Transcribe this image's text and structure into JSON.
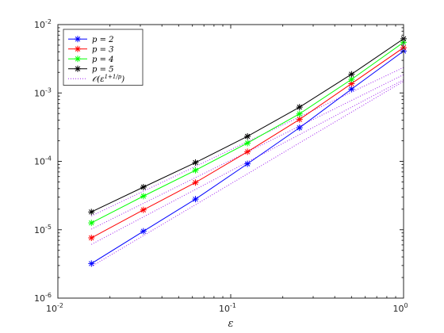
{
  "chart_data": {
    "type": "line",
    "title": "",
    "xlabel": "ε",
    "ylabel": "",
    "xscale": "log",
    "yscale": "log",
    "xlim": [
      0.01,
      1
    ],
    "ylim": [
      1e-06,
      0.01
    ],
    "x_ticks": [
      {
        "value": 0.01,
        "base": "10",
        "exp": "-2"
      },
      {
        "value": 0.1,
        "base": "10",
        "exp": "-1"
      },
      {
        "value": 1,
        "base": "10",
        "exp": "0"
      }
    ],
    "y_ticks": [
      {
        "value": 1e-06,
        "base": "10",
        "exp": "-6"
      },
      {
        "value": 1e-05,
        "base": "10",
        "exp": "-5"
      },
      {
        "value": 0.0001,
        "base": "10",
        "exp": "-4"
      },
      {
        "value": 0.001,
        "base": "10",
        "exp": "-3"
      },
      {
        "value": 0.01,
        "base": "10",
        "exp": "-2"
      }
    ],
    "grid": false,
    "legend_position": "top-left",
    "x": [
      0.015625,
      0.03125,
      0.0625,
      0.125,
      0.25,
      0.5,
      1
    ],
    "series": [
      {
        "name": "p = 2",
        "color": "#0000ff",
        "marker": "asterisk",
        "style": "solid",
        "values": [
          3.2e-06,
          9.5e-06,
          2.8e-05,
          9.2e-05,
          0.00031,
          0.00114,
          0.0041
        ]
      },
      {
        "name": "p = 3",
        "color": "#ff0000",
        "marker": "asterisk",
        "style": "solid",
        "values": [
          7.6e-06,
          1.95e-05,
          4.9e-05,
          0.000138,
          0.00041,
          0.00137,
          0.0046
        ]
      },
      {
        "name": "p = 4",
        "color": "#00ff00",
        "marker": "asterisk",
        "style": "solid",
        "values": [
          1.26e-05,
          3.1e-05,
          7.4e-05,
          0.000185,
          0.000495,
          0.00158,
          0.0055
        ]
      },
      {
        "name": "p = 5",
        "color": "#000000",
        "marker": "asterisk",
        "style": "solid",
        "values": [
          1.82e-05,
          4.2e-05,
          9.6e-05,
          0.000232,
          0.00062,
          0.00188,
          0.0062
        ]
      }
    ],
    "reference_lines": {
      "name": "O(ε^(1+1/p))",
      "legend_main": "𝒪(ε",
      "legend_sup": "1+1/p",
      "legend_close": ")",
      "color": "#a020f0",
      "style": "dotted",
      "lines": [
        {
          "p": 2,
          "values": [
            2.9e-06,
            8.2e-06,
            2.32e-05,
            6.56e-05,
            0.000186,
            0.000525,
            0.00148
          ]
        },
        {
          "p": 3,
          "values": [
            6.1e-06,
            1.54e-05,
            3.88e-05,
            9.78e-05,
            0.000246,
            0.00062,
            0.00156
          ]
        },
        {
          "p": 4,
          "values": [
            1.02e-05,
            2.43e-05,
            5.78e-05,
            0.000137,
            0.000327,
            0.000778,
            0.00185
          ]
        },
        {
          "p": 5,
          "values": [
            1.59e-05,
            3.66e-05,
            8.42e-05,
            0.000194,
            0.000446,
            0.00103,
            0.00236
          ]
        }
      ]
    }
  }
}
